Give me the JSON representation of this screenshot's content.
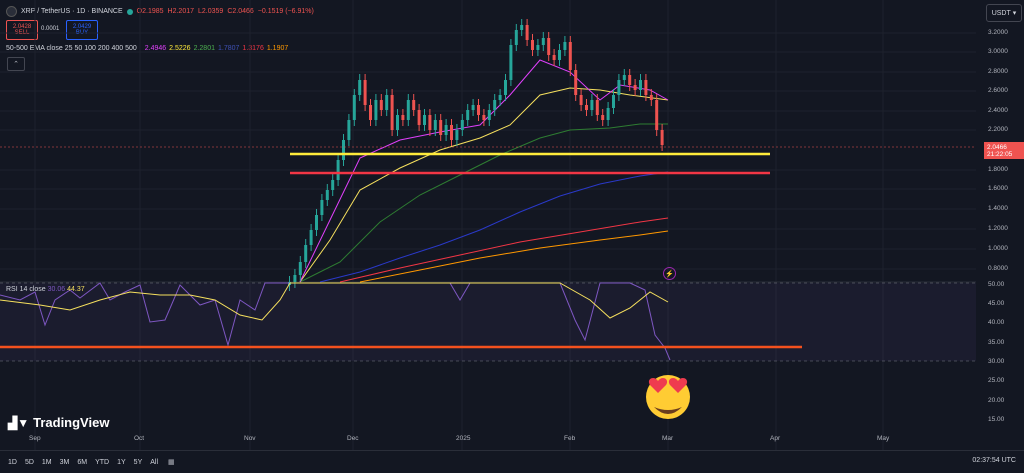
{
  "header": {
    "symbol": "XRP / TetherUS · 1D · BINANCE",
    "open": "O2.1985",
    "high": "H2.2017",
    "low": "L2.0359",
    "close": "C2.0466",
    "change": "−0.1519 (−6.91%)"
  },
  "trade": {
    "sell_price": "2.0428",
    "sell_label": "SELL",
    "spread": "0.0001",
    "buy_price": "2.0429",
    "buy_label": "BUY"
  },
  "ema": {
    "label": "50-500 EMA close 25 50 100 200 400 500",
    "values": [
      {
        "v": "2.4946",
        "color": "#e040fb"
      },
      {
        "v": "2.5226",
        "color": "#ffeb3b"
      },
      {
        "v": "2.2801",
        "color": "#4caf50"
      },
      {
        "v": "1.7807",
        "color": "#3f51b5"
      },
      {
        "v": "1.3176",
        "color": "#f23645"
      },
      {
        "v": "1.1907",
        "color": "#ff9800"
      }
    ]
  },
  "currency": "USDT",
  "price_axis": [
    "3.2000",
    "3.0000",
    "2.8000",
    "2.6000",
    "2.4000",
    "2.2000",
    "1.8000",
    "1.6000",
    "1.4000",
    "1.2000",
    "1.0000",
    "0.8000"
  ],
  "last_price": {
    "price": "2.0466",
    "countdown": "21:22:05"
  },
  "rsi": {
    "label": "RSI 14 close",
    "v1": "30.06",
    "v2": "44.37",
    "axis": [
      "50.00",
      "45.00",
      "40.00",
      "35.00",
      "30.00",
      "25.00",
      "20.00",
      "15.00"
    ]
  },
  "brand": "TradingView",
  "x_axis": [
    "Sep",
    "Oct",
    "Nov",
    "Dec",
    "2025",
    "Feb",
    "Mar",
    "Apr",
    "May"
  ],
  "timeframes": [
    "1D",
    "5D",
    "1M",
    "3M",
    "6M",
    "YTD",
    "1Y",
    "5Y",
    "All"
  ],
  "clock": "02:37:54 UTC",
  "colors": {
    "up": "#26a69a",
    "down": "#ef5350",
    "bg": "#131722"
  }
}
